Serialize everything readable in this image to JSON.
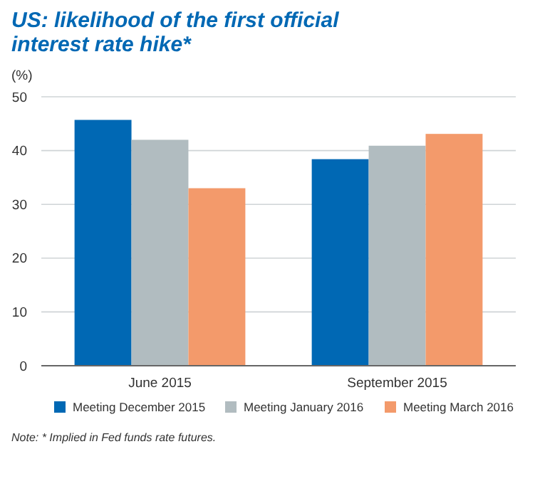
{
  "chart_data": {
    "type": "bar",
    "title": "US:  likelihood of the first official interest rate hike*",
    "ylabel": "(%)",
    "categories": [
      "June 2015",
      "September 2015"
    ],
    "series": [
      {
        "name": "Meeting December 2015",
        "color": "#0068b4",
        "values": [
          45.7,
          38.4
        ]
      },
      {
        "name": "Meeting January 2016",
        "color": "#b1bcc0",
        "values": [
          42.0,
          40.9
        ]
      },
      {
        "name": "Meeting March 2016",
        "color": "#f39a6b",
        "values": [
          33.0,
          43.1
        ]
      }
    ],
    "ylim": [
      0,
      50
    ],
    "yticks": [
      0,
      10,
      20,
      30,
      40,
      50
    ],
    "grid": "y",
    "legend": "bottom",
    "annotations": [
      "Note: * Implied in Fed funds rate futures."
    ]
  }
}
